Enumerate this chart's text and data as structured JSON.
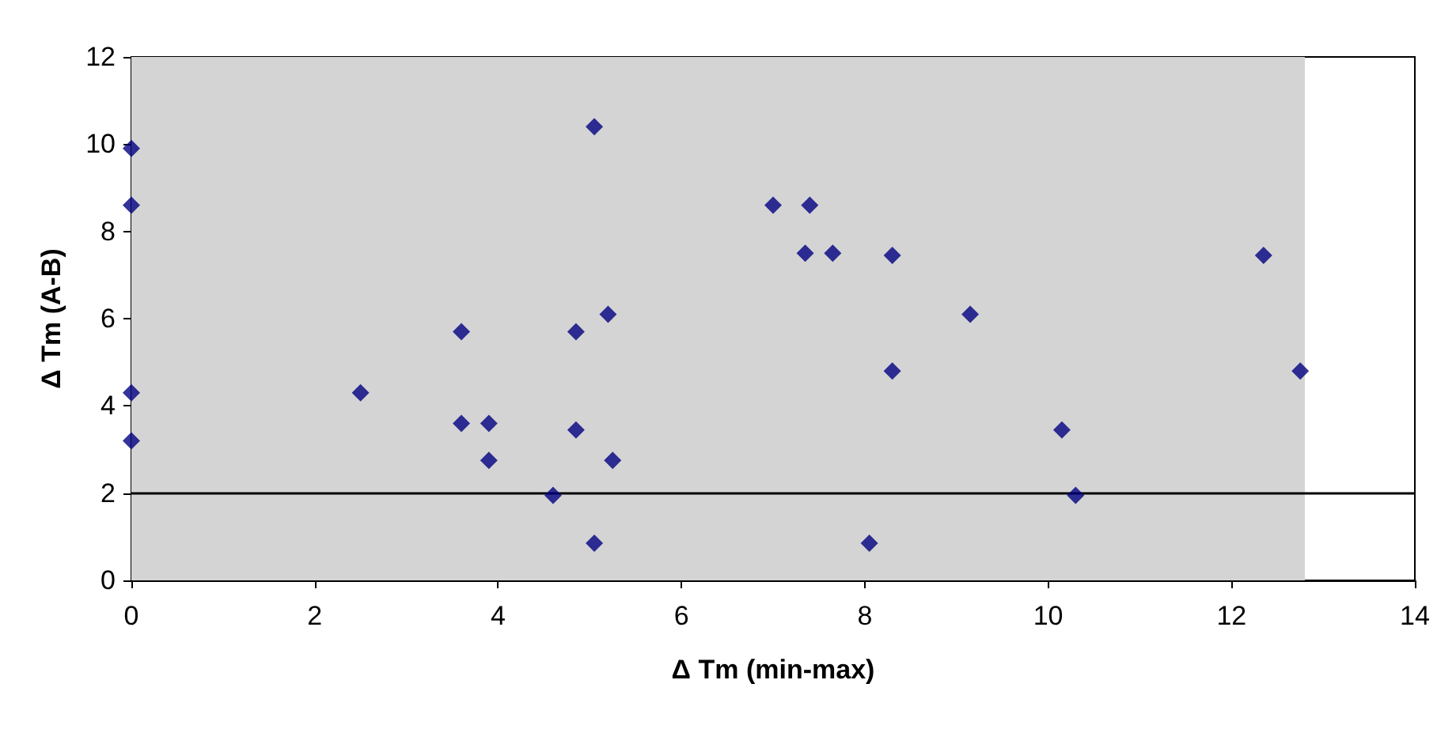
{
  "chart_data": {
    "type": "scatter",
    "xlabel": "Δ Tm (min-max)",
    "ylabel": "Δ Tm (A-B)",
    "marker": "diamond",
    "grid": false,
    "xlim": [
      0,
      14
    ],
    "xticks": [
      0,
      2,
      4,
      6,
      8,
      10,
      12,
      14
    ],
    "ylim": [
      0,
      12
    ],
    "yticks": [
      0,
      2,
      4,
      6,
      8,
      10,
      12
    ],
    "series": [
      {
        "color": "#000080",
        "x": [
          0,
          0,
          0,
          0,
          2.5,
          3.6,
          3.6,
          3.9,
          3.9,
          4.6,
          4.85,
          4.85,
          5.05,
          5.05,
          5.2,
          5.25,
          7.0,
          7.4,
          7.35,
          7.65,
          8.3,
          8.3,
          8.05,
          9.15,
          10.15,
          10.3,
          12.35,
          12.75
        ],
        "values": [
          9.9,
          8.6,
          4.3,
          3.2,
          4.3,
          5.7,
          3.6,
          3.6,
          2.75,
          1.95,
          5.7,
          3.45,
          10.4,
          0.85,
          6.1,
          2.75,
          8.6,
          8.6,
          7.5,
          7.5,
          7.45,
          4.8,
          0.85,
          6.1,
          3.45,
          1.95,
          7.45,
          4.8
        ]
      }
    ],
    "ref_lines": [
      {
        "axis": "y",
        "value": 2,
        "color": "#000000",
        "line_style": "solid"
      }
    ],
    "bands": [
      {
        "axis": "x",
        "from": 0,
        "to": 12.8,
        "color": "#d4d4d4"
      }
    ]
  }
}
